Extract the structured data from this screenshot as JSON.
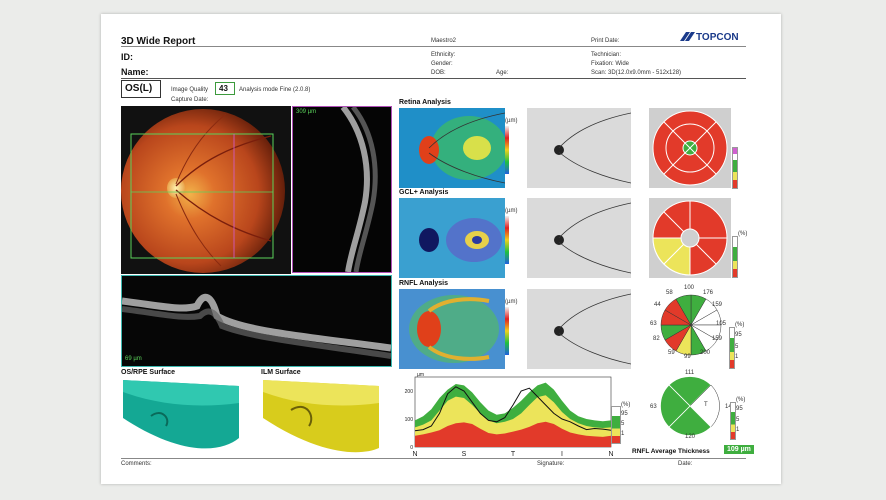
{
  "report": {
    "title": "3D Wide Report",
    "id_label": "ID:",
    "name_label": "Name:",
    "eye": "OS(L)",
    "image_quality_label": "Image Quality",
    "image_quality_value": "43",
    "analysis_mode": "Analysis mode Fine (2.0.8)",
    "capture_date_label": "Capture Date:",
    "device": "Maestro2",
    "ethnicity_label": "Ethnicity:",
    "gender_label": "Gender:",
    "dob_label": "DOB:",
    "age_label": "Age:",
    "print_date_label": "Print Date:",
    "technician_label": "Technician:",
    "fixation": "Fixation: Wide",
    "scan": "Scan: 3D(12.0x9.0mm - 512x128)",
    "brand": "TOPCON"
  },
  "panels": {
    "retina": "Retina Analysis",
    "gcl": "GCL+ Analysis",
    "rnfl": "RNFL Analysis",
    "os_rpe": "OS/RPE Surface",
    "ilm": "ILM Surface",
    "vscan_label": "309 µm",
    "hscan_label": "69 µm",
    "unit": "(µm)",
    "pct": "(%)"
  },
  "scale_pct": [
    "95",
    "5",
    "1"
  ],
  "clock_values": {
    "v100": "100",
    "v176": "176",
    "v58": "58",
    "v159a": "159",
    "v44": "44",
    "v105": "105",
    "v63": "63",
    "v159b": "159",
    "v82": "82",
    "v200": "200",
    "v59": "59",
    "v99": "99"
  },
  "quadrant_values": {
    "s": "111",
    "t": "141",
    "n": "63",
    "i": "120",
    "label_t": "T"
  },
  "chart_data": {
    "type": "area",
    "x_ticks": [
      "N",
      "S",
      "T",
      "I",
      "N"
    ],
    "y_ticks": [
      "200",
      "100",
      "0"
    ],
    "ylim": [
      0,
      250
    ],
    "ylabel": "µm",
    "x": [
      0,
      15,
      30,
      45,
      60,
      75,
      90,
      105,
      120,
      135,
      150,
      165,
      180,
      195,
      210,
      225,
      240,
      255,
      270,
      285,
      300,
      315,
      330,
      345,
      360
    ],
    "series": [
      {
        "values": [
          40,
          45,
          52,
          60,
          75,
          85,
          88,
          82,
          65,
          50,
          45,
          48,
          55,
          62,
          72,
          85,
          90,
          82,
          65,
          52,
          45,
          40,
          38,
          36,
          40
        ]
      },
      {
        "values": [
          70,
          80,
          95,
          130,
          165,
          180,
          175,
          150,
          120,
          95,
          85,
          90,
          100,
          120,
          150,
          178,
          185,
          160,
          125,
          100,
          85,
          75,
          70,
          68,
          70
        ]
      },
      {
        "values": [
          95,
          110,
          135,
          175,
          205,
          225,
          220,
          195,
          160,
          130,
          115,
          120,
          140,
          165,
          195,
          220,
          230,
          205,
          165,
          130,
          110,
          100,
          95,
          92,
          95
        ]
      },
      {
        "values": [
          58,
          62,
          75,
          120,
          190,
          215,
          200,
          160,
          120,
          95,
          90,
          105,
          150,
          200,
          210,
          180,
          150,
          120,
          100,
          90,
          75,
          62,
          66,
          64,
          60
        ]
      }
    ]
  },
  "rnfl_average_label": "RNFL Average Thickness",
  "rnfl_average_value": "109 µm",
  "comments_label": "Comments:",
  "signature_label": "Signature:",
  "date_label": "Date:"
}
